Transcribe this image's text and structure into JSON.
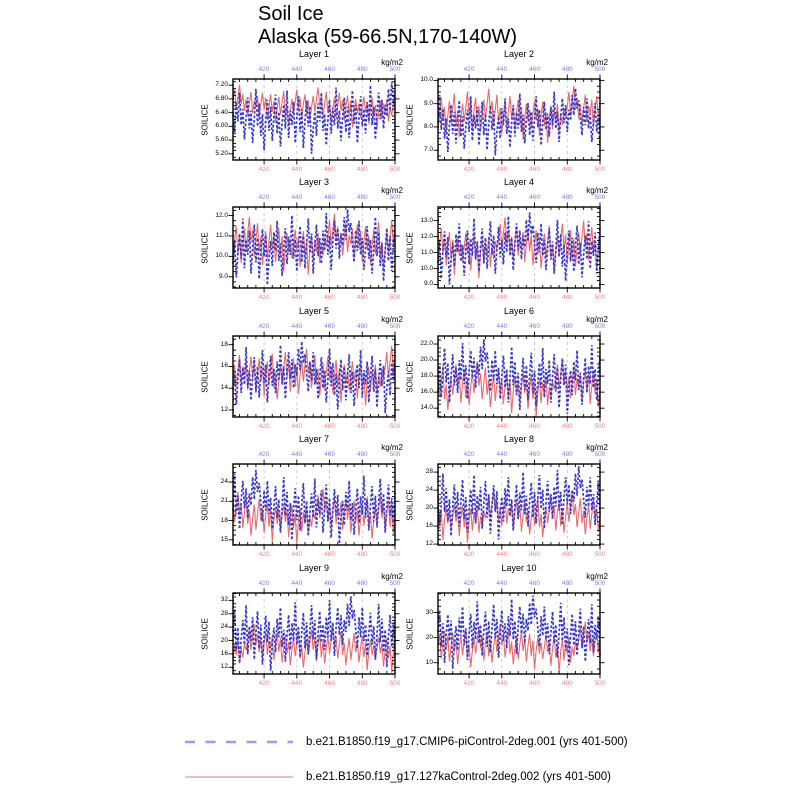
{
  "title": {
    "line1": "Soil Ice",
    "line2": "Alaska (59-66.5N,170-140W)"
  },
  "legend": {
    "entries": [
      {
        "label": "b.e21.B1850.f19_g17.CMIP6-piControl-2deg.001 (yrs 401-500)",
        "style": "dashed",
        "color": "#9c9ce6"
      },
      {
        "label": "b.e21.B1850.f19_g17.127kaControl-2deg.002 (yrs 401-500)",
        "style": "solid",
        "color": "#f4a0a0"
      }
    ]
  },
  "chart_data": {
    "type": "line",
    "ylabel": "SOILICE",
    "x": {
      "start": 401,
      "end": 500,
      "major_ticks": [
        420,
        440,
        460,
        480,
        500
      ],
      "tick_labels": [
        "420",
        "440",
        "460",
        "480",
        "500"
      ],
      "minor_step": 5,
      "units_label": "kg/m2"
    },
    "grid": {
      "vertical_dashed_at": [
        420,
        440,
        460,
        480
      ],
      "color": "#c2c2c2"
    },
    "style": {
      "blue_line": "#3a3ac8",
      "red_line": "#e96a6a",
      "top_label_color": "#7d7de0",
      "bottom_label_color": "#ef8585",
      "frame_color": "#000000"
    },
    "series_names": {
      "blue": "b.e21.B1850.f19_g17.CMIP6-piControl-2deg.001",
      "red": "b.e21.B1850.f19_g17.127kaControl-2deg.002"
    },
    "panels": [
      {
        "title": "Layer 1",
        "ylim": [
          5.02,
          7.38
        ],
        "yticks": [
          5.2,
          5.6,
          6.0,
          6.4,
          6.8,
          7.2
        ],
        "ytick_labels": [
          "5.20",
          "5.60",
          "6.00",
          "6.40",
          "6.80",
          "7.20"
        ],
        "blue": {
          "min": 5.2,
          "max": 7.3,
          "template": "A",
          "offset": 0
        },
        "red": {
          "min": 5.9,
          "max": 7.28,
          "template": "B",
          "offset": 0
        }
      },
      {
        "title": "Layer 2",
        "ylim": [
          6.58,
          10.06
        ],
        "yticks": [
          7.0,
          8.0,
          9.0,
          10.0
        ],
        "ytick_labels": [
          "7.0",
          "8.0",
          "9.0",
          "10.0"
        ],
        "blue": {
          "min": 6.78,
          "max": 9.66,
          "template": "A",
          "offset": 13
        },
        "red": {
          "min": 7.32,
          "max": 9.9,
          "template": "B",
          "offset": 21
        }
      },
      {
        "title": "Layer 3",
        "ylim": [
          8.45,
          12.42
        ],
        "yticks": [
          9.0,
          10.0,
          11.0,
          12.0
        ],
        "ytick_labels": [
          "9.0",
          "10.0",
          "11.0",
          "12.0"
        ],
        "blue": {
          "min": 8.6,
          "max": 12.3,
          "template": "A",
          "offset": 27
        },
        "red": {
          "min": 9.1,
          "max": 12.25,
          "template": "B",
          "offset": 42
        }
      },
      {
        "title": "Layer 4",
        "ylim": [
          8.78,
          13.85
        ],
        "yticks": [
          9.0,
          10.0,
          11.0,
          12.0,
          13.0
        ],
        "ytick_labels": [
          "9.0",
          "10.0",
          "11.0",
          "12.0",
          "13.0"
        ],
        "blue": {
          "min": 9.0,
          "max": 13.5,
          "template": "A",
          "offset": 41
        },
        "red": {
          "min": 9.4,
          "max": 13.4,
          "template": "B",
          "offset": 63
        }
      },
      {
        "title": "Layer 5",
        "ylim": [
          11.35,
          18.8
        ],
        "yticks": [
          12,
          14,
          16,
          18
        ],
        "ytick_labels": [
          "12",
          "14",
          "16",
          "18"
        ],
        "blue": {
          "min": 11.7,
          "max": 18.3,
          "template": "A",
          "offset": 55
        },
        "red": {
          "min": 12.4,
          "max": 18.2,
          "template": "B",
          "offset": 7
        }
      },
      {
        "title": "Layer 6",
        "ylim": [
          12.9,
          23.0
        ],
        "yticks": [
          14.0,
          16.0,
          18.0,
          20.0,
          22.0
        ],
        "ytick_labels": [
          "14.0",
          "16.0",
          "18.0",
          "20.0",
          "22.0"
        ],
        "blue": {
          "min": 13.3,
          "max": 22.6,
          "template": "A",
          "offset": 69
        },
        "red": {
          "min": 13.0,
          "max": 20.6,
          "template": "B",
          "offset": 28
        }
      },
      {
        "title": "Layer 7",
        "ylim": [
          14.2,
          26.8
        ],
        "yticks": [
          15,
          18,
          21,
          24
        ],
        "ytick_labels": [
          "15",
          "18",
          "21",
          "24"
        ],
        "blue": {
          "min": 14.4,
          "max": 25.9,
          "template": "A",
          "offset": 83
        },
        "red": {
          "min": 14.3,
          "max": 23.4,
          "template": "B",
          "offset": 49
        }
      },
      {
        "title": "Layer 8",
        "ylim": [
          11.8,
          29.8
        ],
        "yticks": [
          12,
          16,
          20,
          24,
          28
        ],
        "ytick_labels": [
          "12",
          "16",
          "20",
          "24",
          "28"
        ],
        "blue": {
          "min": 13.0,
          "max": 29.3,
          "template": "A",
          "offset": 11
        },
        "red": {
          "min": 12.3,
          "max": 24.6,
          "template": "B",
          "offset": 70
        }
      },
      {
        "title": "Layer 9",
        "ylim": [
          10.0,
          34.2
        ],
        "yticks": [
          12,
          16,
          20,
          24,
          28,
          32
        ],
        "ytick_labels": [
          "12",
          "16",
          "20",
          "24",
          "28",
          "32"
        ],
        "blue": {
          "min": 11.0,
          "max": 33.2,
          "template": "A",
          "offset": 25
        },
        "red": {
          "min": 10.4,
          "max": 25.6,
          "template": "B",
          "offset": 91
        }
      },
      {
        "title": "Layer 10",
        "ylim": [
          5.5,
          37.8
        ],
        "yticks": [
          10,
          20,
          30
        ],
        "ytick_labels": [
          "10",
          "20",
          "30"
        ],
        "blue": {
          "min": 7.6,
          "max": 36.8,
          "template": "A",
          "offset": 39
        },
        "red": {
          "min": 6.2,
          "max": 27.4,
          "template": "B",
          "offset": 14
        }
      }
    ],
    "shape_templates": {
      "note": "estimated normalized (0-1) annual series for yrs 401-500; panel value = min + t*(max-min), index shifted by offset",
      "A": [
        0.55,
        0.3,
        0.72,
        0.45,
        0.85,
        0.4,
        0.62,
        0.2,
        0.5,
        0.78,
        0.35,
        0.6,
        0.15,
        0.48,
        0.9,
        0.38,
        0.7,
        0.25,
        0.55,
        0.05,
        0.45,
        0.75,
        0.32,
        0.65,
        0.18,
        0.52,
        0.82,
        0.28,
        0.58,
        0.1,
        0.42,
        0.68,
        0.35,
        0.88,
        0.22,
        0.6,
        0.4,
        0.72,
        0.15,
        0.5,
        0.8,
        0.3,
        0.62,
        0.08,
        0.46,
        0.74,
        0.38,
        0.66,
        0.0,
        0.35,
        0.58,
        0.25,
        0.7,
        0.45,
        0.85,
        0.32,
        0.55,
        0.12,
        0.48,
        0.75,
        0.28,
        0.64,
        0.4,
        0.92,
        0.35,
        0.6,
        0.18,
        0.52,
        0.78,
        0.3,
        0.65,
        0.22,
        0.55,
        0.88,
        0.42,
        0.68,
        0.15,
        0.5,
        0.8,
        0.38,
        0.62,
        0.28,
        0.72,
        0.45,
        0.95,
        0.4,
        0.65,
        0.2,
        0.58,
        0.85,
        0.48,
        0.75,
        0.35,
        0.68,
        0.52,
        0.9,
        0.6,
        1.0,
        0.7,
        0.82
      ],
      "B": [
        0.6,
        0.85,
        0.45,
        0.7,
        0.95,
        0.55,
        0.75,
        0.4,
        0.65,
        0.3,
        0.58,
        0.8,
        0.35,
        0.62,
        0.48,
        0.72,
        0.25,
        0.55,
        0.78,
        0.42,
        0.68,
        0.2,
        0.5,
        0.75,
        0.38,
        0.6,
        0.15,
        0.45,
        0.7,
        0.32,
        0.58,
        0.82,
        0.28,
        0.52,
        0.1,
        0.4,
        0.65,
        0.35,
        0.6,
        0.85,
        0.45,
        0.68,
        0.22,
        0.55,
        0.75,
        0.3,
        0.62,
        0.18,
        0.48,
        0.72,
        0.38,
        0.65,
        0.9,
        0.5,
        0.7,
        0.28,
        0.55,
        0.8,
        0.35,
        0.58,
        0.15,
        0.45,
        0.68,
        0.25,
        0.52,
        0.78,
        0.4,
        0.62,
        0.2,
        0.5,
        0.72,
        0.3,
        0.6,
        0.05,
        0.42,
        0.65,
        0.35,
        0.55,
        0.25,
        0.48,
        0.7,
        0.38,
        0.58,
        0.12,
        0.45,
        0.68,
        0.28,
        0.52,
        0.0,
        0.4,
        0.62,
        0.22,
        0.55,
        0.35,
        0.65,
        0.18,
        0.48,
        0.3,
        0.58,
        0.44
      ]
    }
  }
}
